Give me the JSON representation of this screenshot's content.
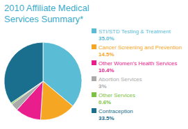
{
  "chart_data": {
    "type": "pie",
    "title": "2010 Affiliate Medical",
    "subtitle": "Services Summary*",
    "categories": [
      "STI/STD Testing & Treatment",
      "Cancer Screening and Prevention",
      "Other Women's Health Services",
      "Abortion Services",
      "Other Services",
      "Contraception"
    ],
    "values": [
      35.0,
      14.5,
      10.4,
      3.0,
      0.6,
      33.5
    ],
    "value_labels": [
      "35.0%",
      "14.5%",
      "10.4%",
      "3%",
      "0.6%",
      "33.5%"
    ],
    "colors": [
      "#5bbcd6",
      "#f5a623",
      "#e91e8c",
      "#aaaaaa",
      "#7dc242",
      "#1a6e8e"
    ],
    "legend": "right"
  }
}
